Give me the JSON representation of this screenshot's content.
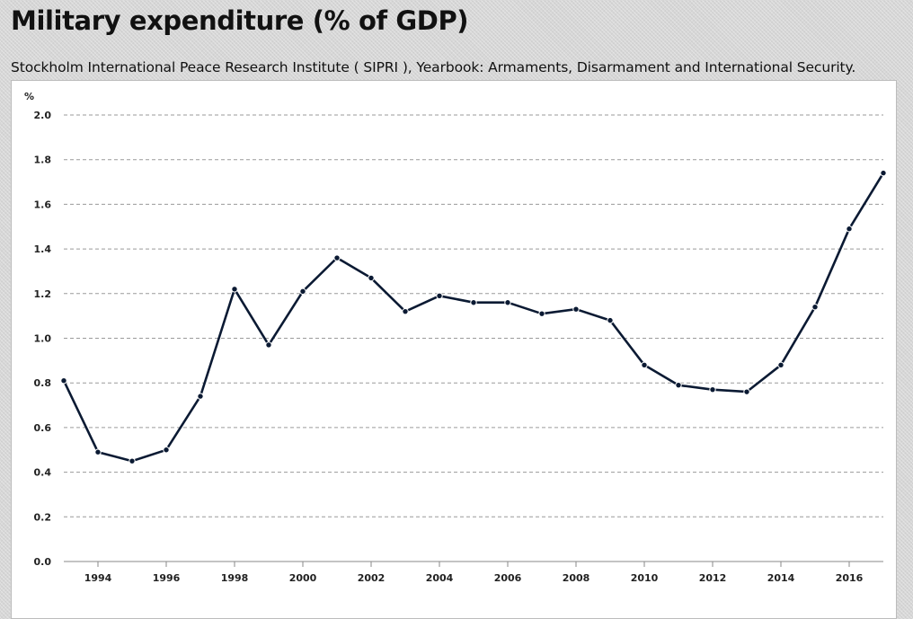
{
  "page": {
    "title": "Military expenditure (% of GDP)",
    "source": "Stockholm International Peace Research Institute ( SIPRI ), Yearbook: Armaments, Disarmament and International Security."
  },
  "chart_data": {
    "type": "line",
    "title": "Military expenditure (% of GDP)",
    "xlabel": "",
    "ylabel": "%",
    "ylim": [
      0,
      2.0
    ],
    "xlim": [
      1993,
      2017
    ],
    "yticks": [
      "0.0",
      "0.2",
      "0.4",
      "0.6",
      "0.8",
      "1.0",
      "1.2",
      "1.4",
      "1.6",
      "1.8",
      "2.0"
    ],
    "xticks": [
      1994,
      1996,
      1998,
      2000,
      2002,
      2004,
      2006,
      2008,
      2010,
      2012,
      2014,
      2016
    ],
    "grid": true,
    "legend": "none",
    "series": [
      {
        "color": "#0b1a33",
        "x": [
          1993,
          1994,
          1995,
          1996,
          1997,
          1998,
          1999,
          2000,
          2001,
          2002,
          2003,
          2004,
          2005,
          2006,
          2007,
          2008,
          2009,
          2010,
          2011,
          2012,
          2013,
          2014,
          2015,
          2016,
          2017
        ],
        "values": [
          0.81,
          0.49,
          0.45,
          0.5,
          0.74,
          1.22,
          0.97,
          1.21,
          1.36,
          1.27,
          1.12,
          1.19,
          1.16,
          1.16,
          1.11,
          1.13,
          1.08,
          0.88,
          0.79,
          0.77,
          0.76,
          0.88,
          1.14,
          1.49,
          1.74
        ]
      }
    ]
  }
}
